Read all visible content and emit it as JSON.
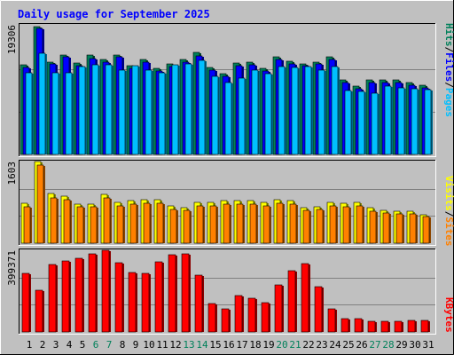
{
  "title": "Daily usage for September 2025",
  "colors": {
    "hits": "#00805a",
    "files": "#0000ff",
    "pages": "#00bfff",
    "visits": "#ffff00",
    "sites": "#ff8000",
    "kbytes": "#ff0000",
    "weekend_day": "#00805a",
    "weekday": "#000000"
  },
  "chart_data": [
    {
      "type": "bar",
      "title": "Daily usage for September 2025",
      "categories": [
        "1",
        "2",
        "3",
        "4",
        "5",
        "6",
        "7",
        "8",
        "9",
        "10",
        "11",
        "12",
        "13",
        "14",
        "15",
        "16",
        "17",
        "18",
        "19",
        "20",
        "21",
        "22",
        "23",
        "24",
        "25",
        "26",
        "27",
        "28",
        "29",
        "30",
        "31"
      ],
      "weekend_days": [
        "6",
        "7",
        "13",
        "14",
        "20",
        "21",
        "27",
        "28"
      ],
      "y_max_label": "19306",
      "ylim": [
        0,
        19306
      ],
      "legend": [
        "Hits",
        "Files",
        "Pages"
      ],
      "series": [
        {
          "name": "Hits",
          "values": [
            13600,
            19306,
            14000,
            15000,
            13800,
            15000,
            14400,
            15000,
            13400,
            14400,
            13000,
            13700,
            14400,
            15400,
            13200,
            12200,
            13800,
            14000,
            13000,
            14700,
            14100,
            13700,
            14000,
            14800,
            11200,
            10300,
            11200,
            11200,
            11200,
            10800,
            10400
          ]
        },
        {
          "name": "Files",
          "values": [
            13200,
            19000,
            13700,
            14700,
            13400,
            14500,
            14000,
            14700,
            13000,
            14000,
            12600,
            13300,
            14000,
            14900,
            12800,
            11800,
            13400,
            13600,
            12600,
            14300,
            13700,
            13400,
            13700,
            14400,
            10800,
            9900,
            10800,
            10800,
            10800,
            10400,
            10000
          ]
        },
        {
          "name": "Pages",
          "values": [
            12400,
            15300,
            12400,
            12400,
            13300,
            13500,
            13600,
            12800,
            13400,
            12700,
            12300,
            13500,
            13700,
            14200,
            11800,
            10800,
            11500,
            12800,
            12200,
            13300,
            13200,
            13300,
            12800,
            13300,
            9600,
            9500,
            9300,
            10300,
            10100,
            9900,
            9800
          ]
        }
      ]
    },
    {
      "type": "bar",
      "y_max_label": "1603",
      "ylim": [
        0,
        1603
      ],
      "legend": [
        "Visits",
        "Sites"
      ],
      "series": [
        {
          "name": "Visits",
          "values": [
            790,
            1603,
            970,
            930,
            770,
            770,
            960,
            800,
            840,
            850,
            850,
            730,
            700,
            800,
            800,
            830,
            840,
            840,
            800,
            860,
            830,
            700,
            720,
            800,
            790,
            800,
            690,
            650,
            630,
            620,
            560
          ]
        },
        {
          "name": "Sites",
          "values": [
            720,
            1530,
            890,
            860,
            720,
            720,
            880,
            730,
            770,
            790,
            790,
            660,
            640,
            730,
            730,
            760,
            770,
            770,
            730,
            780,
            760,
            640,
            660,
            730,
            720,
            730,
            630,
            600,
            580,
            570,
            520
          ]
        }
      ]
    },
    {
      "type": "bar",
      "y_max_label": "399371",
      "ylim": [
        0,
        399371
      ],
      "legend": [
        "KBytes"
      ],
      "series": [
        {
          "name": "KBytes",
          "values": [
            285000,
            202000,
            331000,
            347000,
            362000,
            380000,
            399371,
            339000,
            291000,
            288000,
            341000,
            379000,
            384000,
            277000,
            138000,
            111000,
            176000,
            167000,
            144000,
            231000,
            300000,
            335000,
            220000,
            112000,
            65000,
            66000,
            52000,
            54000,
            54000,
            55000,
            55000
          ]
        }
      ]
    }
  ]
}
